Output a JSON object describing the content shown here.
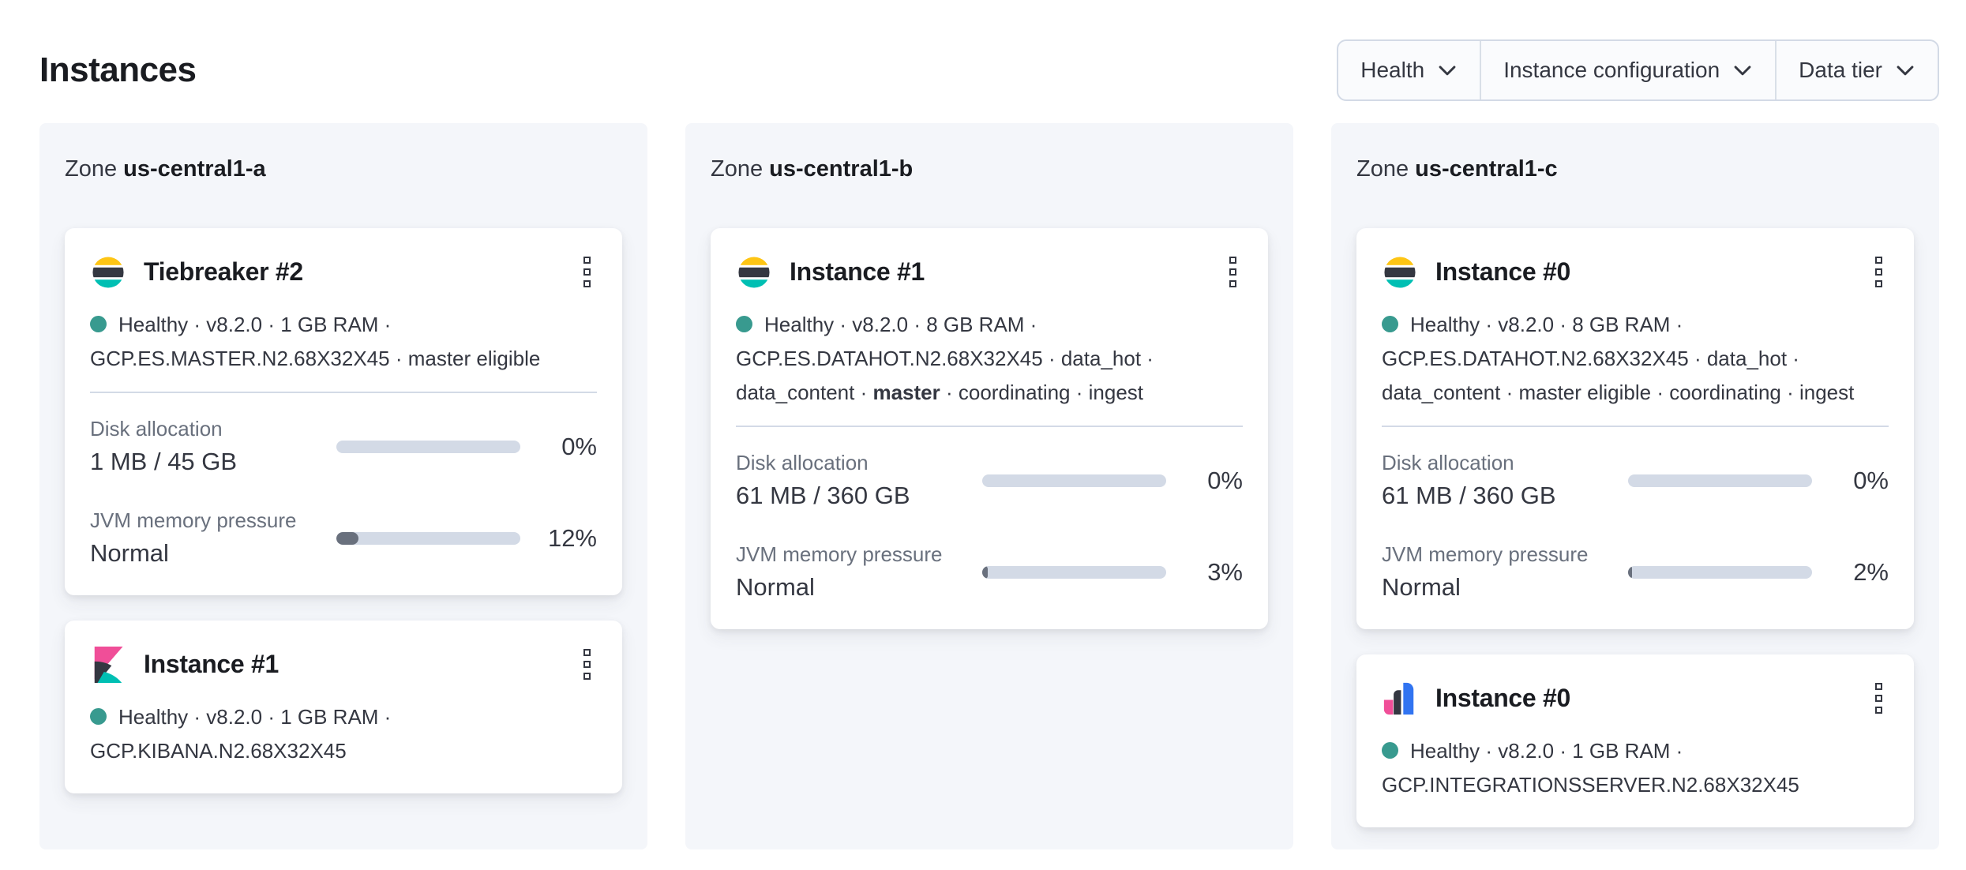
{
  "page": {
    "title": "Instances"
  },
  "filters": [
    {
      "label": "Health"
    },
    {
      "label": "Instance configuration"
    },
    {
      "label": "Data tier"
    }
  ],
  "colors": {
    "healthy_dot": "#389a8f",
    "bar_track": "#d3dae6",
    "bar_fill": "#69707d",
    "logo_yellow": "#fec514",
    "logo_dark": "#343741",
    "logo_teal": "#00bfb3",
    "logo_pink": "#f04e98",
    "logo_blue": "#3174f1"
  },
  "zones": [
    {
      "label_prefix": "Zone",
      "name": "us-central1-a",
      "cards": [
        {
          "logo": "elasticsearch-logo",
          "title": "Tiebreaker #2",
          "meta_lines": [
            [
              {
                "t": "Healthy"
              },
              {
                "t": "v8.2.0"
              },
              {
                "t": "1 GB RAM"
              }
            ],
            [
              {
                "t": "GCP.ES.MASTER.N2.68X32X45"
              },
              {
                "t": "master eligible"
              }
            ]
          ],
          "stats": [
            {
              "label": "Disk allocation",
              "value": "1 MB / 45 GB",
              "percent": 0,
              "percent_label": "0%"
            },
            {
              "label": "JVM memory pressure",
              "value": "Normal",
              "percent": 12,
              "percent_label": "12%"
            }
          ]
        },
        {
          "logo": "kibana-logo",
          "title": "Instance #1",
          "meta_lines": [
            [
              {
                "t": "Healthy"
              },
              {
                "t": "v8.2.0"
              },
              {
                "t": "1 GB RAM"
              }
            ],
            [
              {
                "t": "GCP.KIBANA.N2.68X32X45"
              }
            ]
          ],
          "stats": []
        }
      ]
    },
    {
      "label_prefix": "Zone",
      "name": "us-central1-b",
      "cards": [
        {
          "logo": "elasticsearch-logo",
          "title": "Instance #1",
          "meta_lines": [
            [
              {
                "t": "Healthy"
              },
              {
                "t": "v8.2.0"
              },
              {
                "t": "8 GB RAM"
              }
            ],
            [
              {
                "t": "GCP.ES.DATAHOT.N2.68X32X45"
              },
              {
                "t": "data_hot"
              }
            ],
            [
              {
                "t": "data_content"
              },
              {
                "t": "master",
                "b": true
              },
              {
                "t": "coordinating"
              },
              {
                "t": "ingest"
              }
            ]
          ],
          "stats": [
            {
              "label": "Disk allocation",
              "value": "61 MB / 360 GB",
              "percent": 0,
              "percent_label": "0%"
            },
            {
              "label": "JVM memory pressure",
              "value": "Normal",
              "percent": 3,
              "percent_label": "3%"
            }
          ]
        }
      ]
    },
    {
      "label_prefix": "Zone",
      "name": "us-central1-c",
      "cards": [
        {
          "logo": "elasticsearch-logo",
          "title": "Instance #0",
          "meta_lines": [
            [
              {
                "t": "Healthy"
              },
              {
                "t": "v8.2.0"
              },
              {
                "t": "8 GB RAM"
              }
            ],
            [
              {
                "t": "GCP.ES.DATAHOT.N2.68X32X45"
              },
              {
                "t": "data_hot"
              }
            ],
            [
              {
                "t": "data_content"
              },
              {
                "t": "master eligible"
              },
              {
                "t": "coordinating"
              },
              {
                "t": "ingest"
              }
            ]
          ],
          "stats": [
            {
              "label": "Disk allocation",
              "value": "61 MB / 360 GB",
              "percent": 0,
              "percent_label": "0%"
            },
            {
              "label": "JVM memory pressure",
              "value": "Normal",
              "percent": 2,
              "percent_label": "2%"
            }
          ]
        },
        {
          "logo": "integrations-server-logo",
          "title": "Instance #0",
          "meta_lines": [
            [
              {
                "t": "Healthy"
              },
              {
                "t": "v8.2.0"
              },
              {
                "t": "1 GB RAM"
              }
            ],
            [
              {
                "t": "GCP.INTEGRATIONSSERVER.N2.68X32X45"
              }
            ]
          ],
          "stats": []
        }
      ]
    }
  ]
}
